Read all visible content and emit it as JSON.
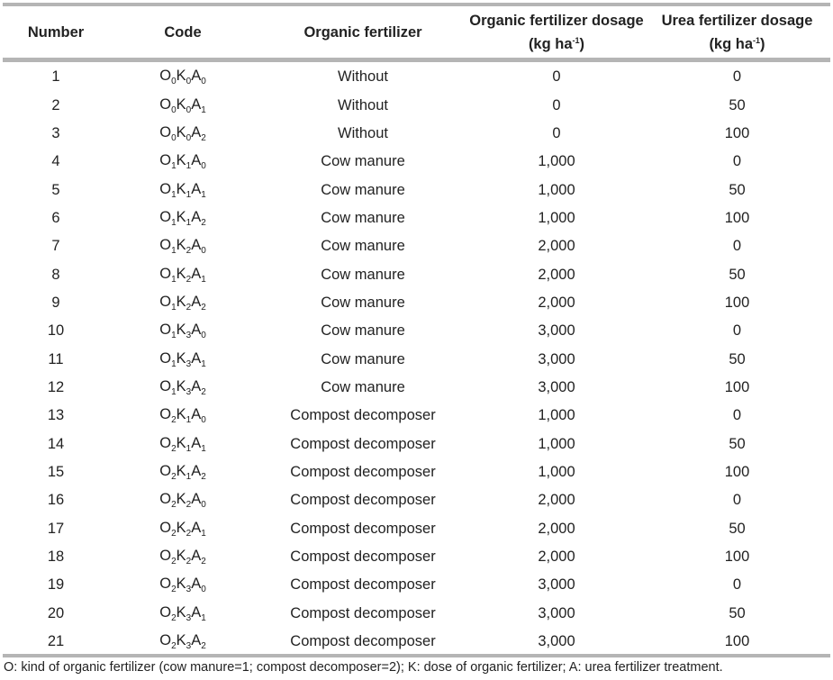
{
  "table": {
    "headers": [
      {
        "text": "Number"
      },
      {
        "text": "Code"
      },
      {
        "text": "Organic fertilizer"
      },
      {
        "text": "Organic fertilizer dosage",
        "unit": "(kg ha",
        "unit_sup": "-1",
        "unit_close": ")"
      },
      {
        "text": "Urea fertilizer dosage",
        "unit": "(kg ha",
        "unit_sup": "-1",
        "unit_close": ")"
      }
    ],
    "rows": [
      {
        "number": "1",
        "code": [
          "0",
          "0",
          "0"
        ],
        "fertilizer": "Without",
        "organic_dosage": "0",
        "urea_dosage": "0"
      },
      {
        "number": "2",
        "code": [
          "0",
          "0",
          "1"
        ],
        "fertilizer": "Without",
        "organic_dosage": "0",
        "urea_dosage": "50"
      },
      {
        "number": "3",
        "code": [
          "0",
          "0",
          "2"
        ],
        "fertilizer": "Without",
        "organic_dosage": "0",
        "urea_dosage": "100"
      },
      {
        "number": "4",
        "code": [
          "1",
          "1",
          "0"
        ],
        "fertilizer": "Cow manure",
        "organic_dosage": "1,000",
        "urea_dosage": "0"
      },
      {
        "number": "5",
        "code": [
          "1",
          "1",
          "1"
        ],
        "fertilizer": "Cow manure",
        "organic_dosage": "1,000",
        "urea_dosage": "50"
      },
      {
        "number": "6",
        "code": [
          "1",
          "1",
          "2"
        ],
        "fertilizer": "Cow manure",
        "organic_dosage": "1,000",
        "urea_dosage": "100"
      },
      {
        "number": "7",
        "code": [
          "1",
          "2",
          "0"
        ],
        "fertilizer": "Cow manure",
        "organic_dosage": "2,000",
        "urea_dosage": "0"
      },
      {
        "number": "8",
        "code": [
          "1",
          "2",
          "1"
        ],
        "fertilizer": "Cow manure",
        "organic_dosage": "2,000",
        "urea_dosage": "50"
      },
      {
        "number": "9",
        "code": [
          "1",
          "2",
          "2"
        ],
        "fertilizer": "Cow manure",
        "organic_dosage": "2,000",
        "urea_dosage": "100"
      },
      {
        "number": "10",
        "code": [
          "1",
          "3",
          "0"
        ],
        "fertilizer": "Cow manure",
        "organic_dosage": "3,000",
        "urea_dosage": "0"
      },
      {
        "number": "11",
        "code": [
          "1",
          "3",
          "1"
        ],
        "fertilizer": "Cow manure",
        "organic_dosage": "3,000",
        "urea_dosage": "50"
      },
      {
        "number": "12",
        "code": [
          "1",
          "3",
          "2"
        ],
        "fertilizer": "Cow manure",
        "organic_dosage": "3,000",
        "urea_dosage": "100"
      },
      {
        "number": "13",
        "code": [
          "2",
          "1",
          "0"
        ],
        "fertilizer": "Compost decomposer",
        "organic_dosage": "1,000",
        "urea_dosage": "0"
      },
      {
        "number": "14",
        "code": [
          "2",
          "1",
          "1"
        ],
        "fertilizer": "Compost decomposer",
        "organic_dosage": "1,000",
        "urea_dosage": "50"
      },
      {
        "number": "15",
        "code": [
          "2",
          "1",
          "2"
        ],
        "fertilizer": "Compost decomposer",
        "organic_dosage": "1,000",
        "urea_dosage": "100"
      },
      {
        "number": "16",
        "code": [
          "2",
          "2",
          "0"
        ],
        "fertilizer": "Compost decomposer",
        "organic_dosage": "2,000",
        "urea_dosage": "0"
      },
      {
        "number": "17",
        "code": [
          "2",
          "2",
          "1"
        ],
        "fertilizer": "Compost decomposer",
        "organic_dosage": "2,000",
        "urea_dosage": "50"
      },
      {
        "number": "18",
        "code": [
          "2",
          "2",
          "2"
        ],
        "fertilizer": "Compost decomposer",
        "organic_dosage": "2,000",
        "urea_dosage": "100"
      },
      {
        "number": "19",
        "code": [
          "2",
          "3",
          "0"
        ],
        "fertilizer": "Compost decomposer",
        "organic_dosage": "3,000",
        "urea_dosage": "0"
      },
      {
        "number": "20",
        "code": [
          "2",
          "3",
          "1"
        ],
        "fertilizer": "Compost decomposer",
        "organic_dosage": "3,000",
        "urea_dosage": "50"
      },
      {
        "number": "21",
        "code": [
          "2",
          "3",
          "2"
        ],
        "fertilizer": "Compost decomposer",
        "organic_dosage": "3,000",
        "urea_dosage": "100"
      }
    ],
    "code_letters": [
      "O",
      "K",
      "A"
    ]
  },
  "footnote": "O: kind of organic fertilizer (cow manure=1; compost decomposer=2); K: dose of organic fertilizer; A: urea fertilizer treatment."
}
